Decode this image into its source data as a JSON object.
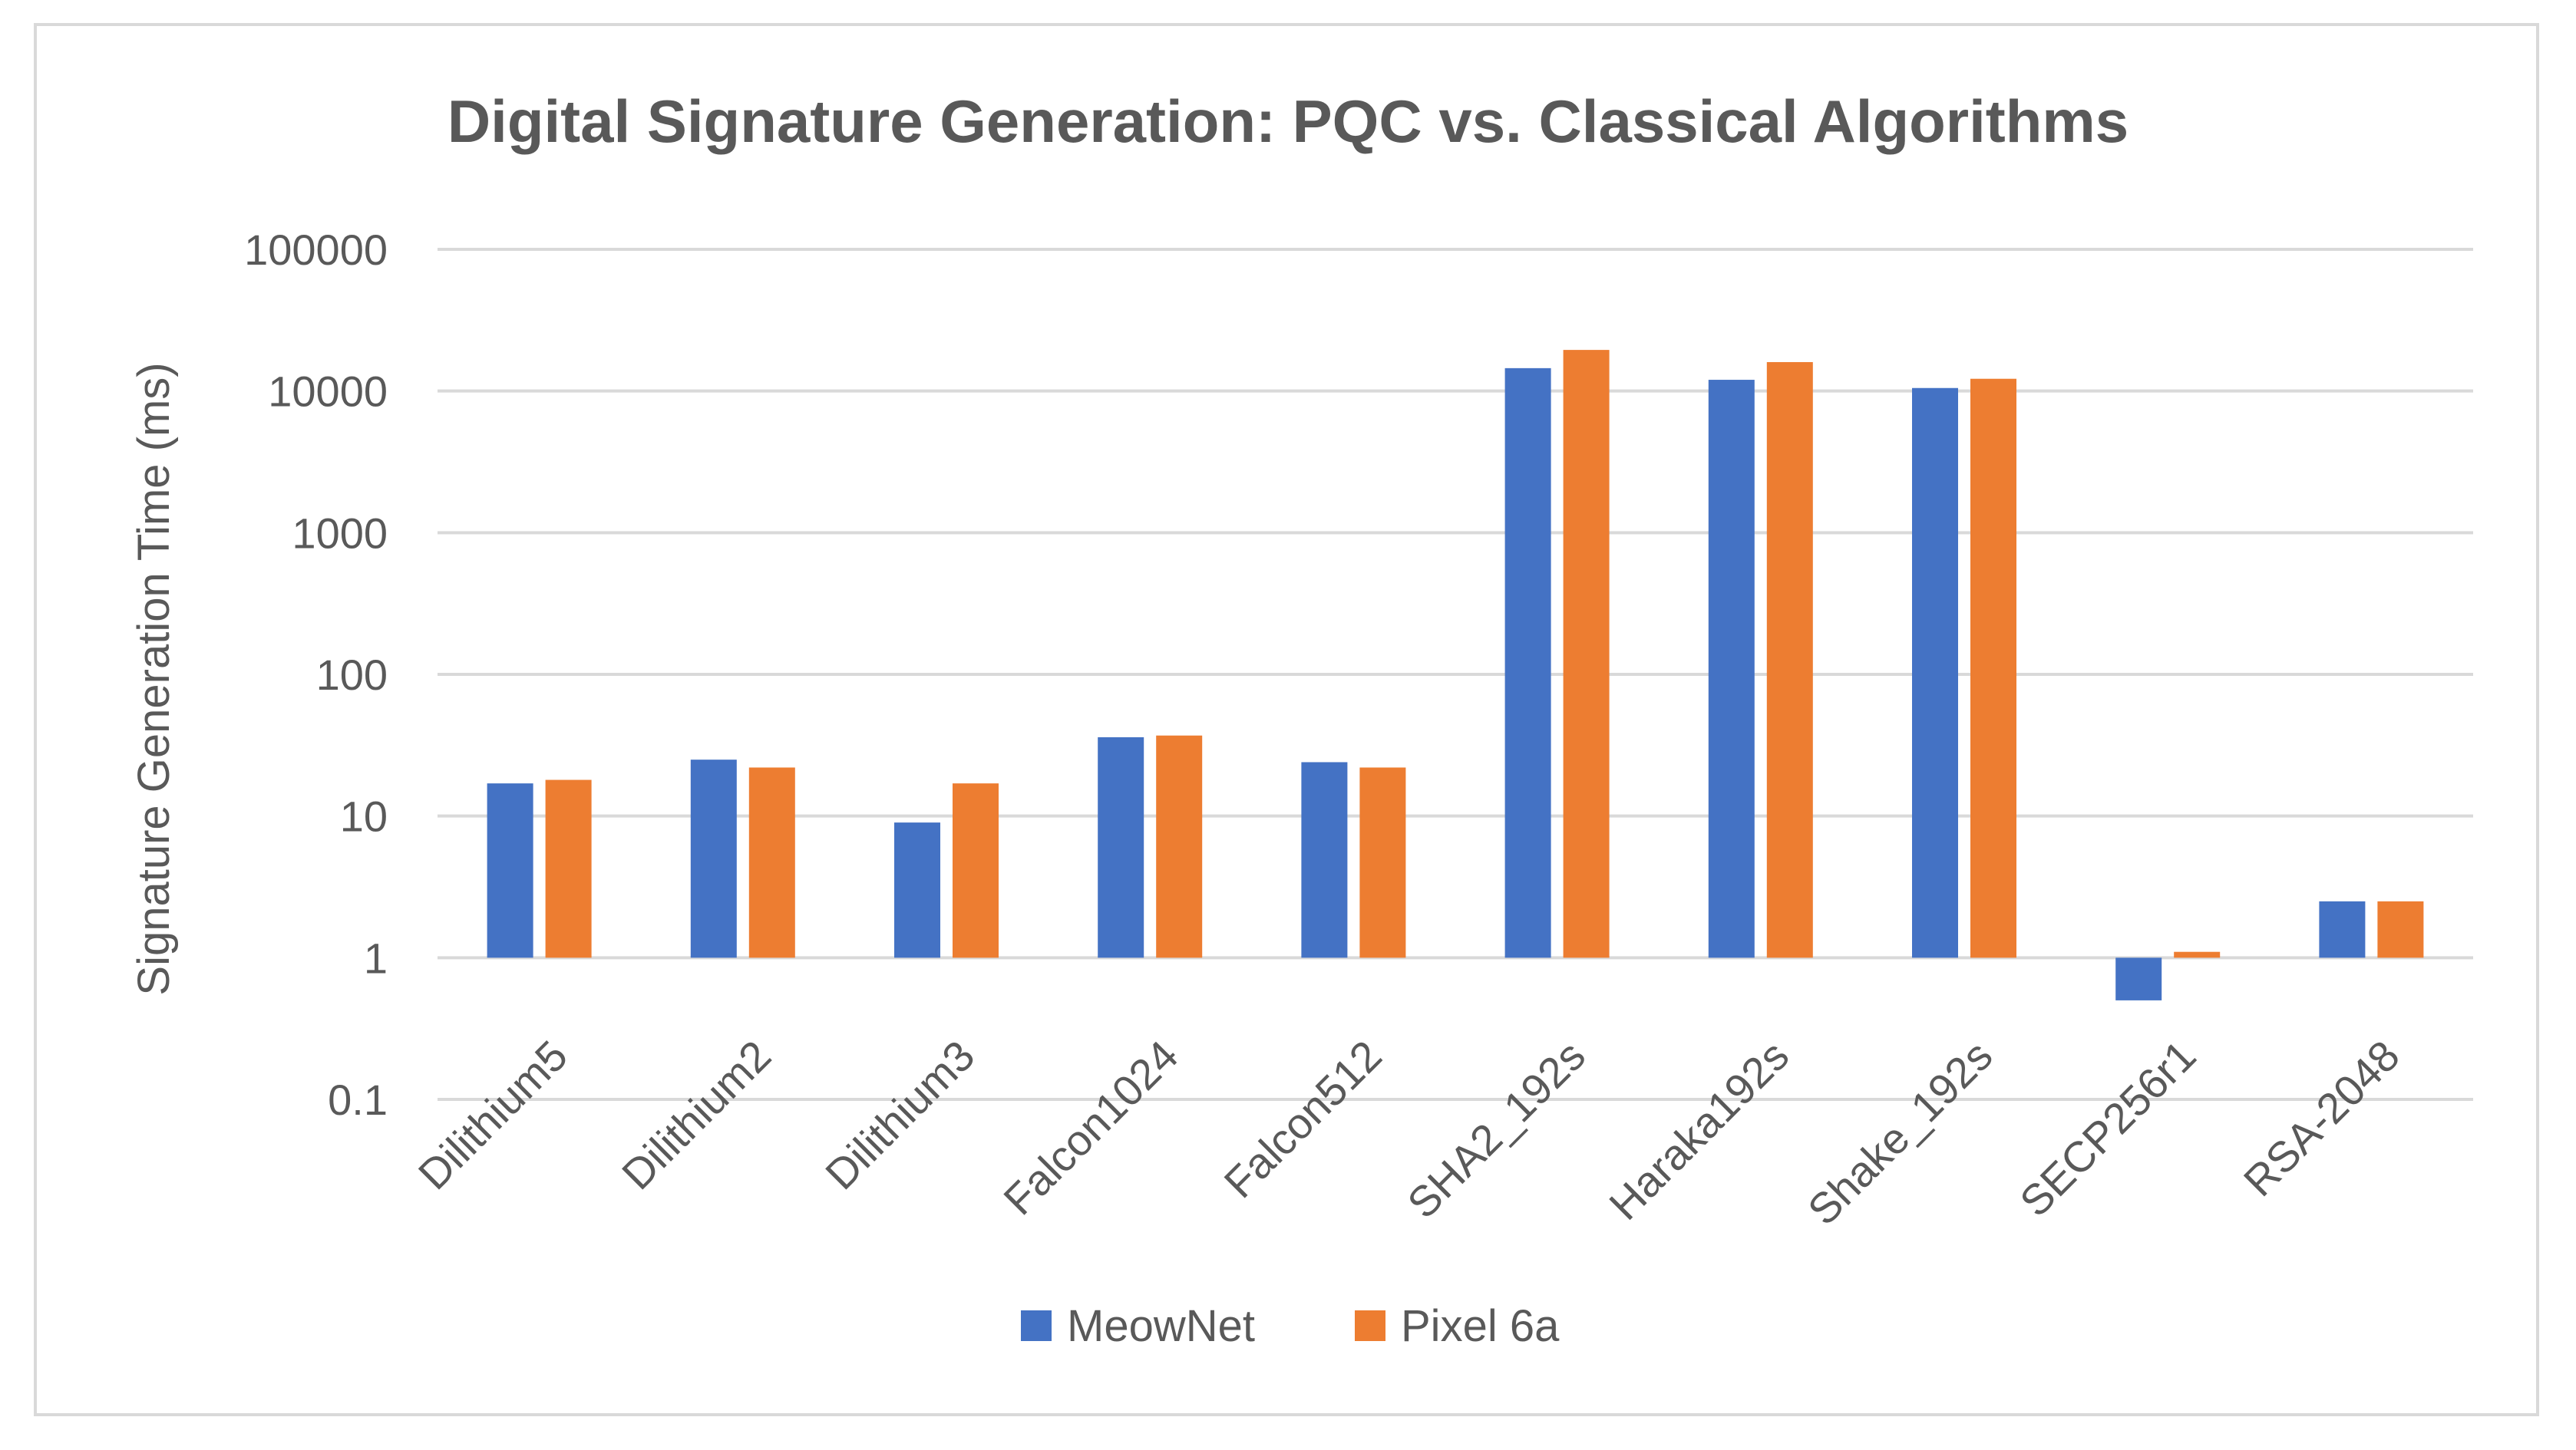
{
  "chart_data": {
    "type": "bar",
    "title": "Digital Signature Generation: PQC vs. Classical Algorithms",
    "xlabel": "",
    "ylabel": "Signature Generation Time (ms)",
    "yscale": "log",
    "ylim": [
      0.1,
      100000
    ],
    "yticks": [
      "0.1",
      "1",
      "10",
      "100",
      "1000",
      "10000",
      "100000"
    ],
    "categories": [
      "Dilithium5",
      "Dilithium2",
      "Dilithium3",
      "Falcon1024",
      "Falcon512",
      "SHA2_192s",
      "Haraka192s",
      "Shake_192s",
      "SECP256r1",
      "RSA-2048"
    ],
    "series": [
      {
        "name": "MeowNet",
        "color": "#4472C4",
        "values": [
          17,
          25,
          9,
          36,
          24,
          14500,
          12000,
          10500,
          0.5,
          2.5
        ]
      },
      {
        "name": "Pixel 6a",
        "color": "#ED7D31",
        "values": [
          18,
          22,
          17,
          37,
          22,
          19500,
          16000,
          12200,
          1.1,
          2.5
        ]
      }
    ],
    "grid": true,
    "legend_position": "bottom",
    "baseline": 1
  }
}
